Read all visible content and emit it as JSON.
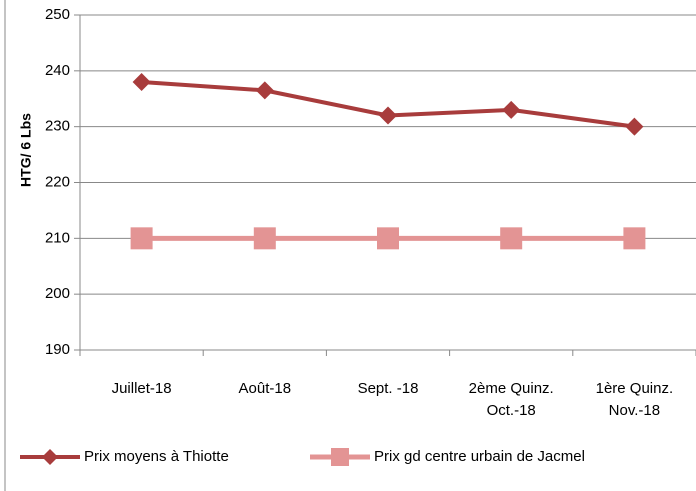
{
  "chart_data": {
    "type": "line",
    "y_label": "HTG/ 6 Lbs",
    "categories": [
      "Juillet-18",
      "Août-18",
      "Sept. -18",
      "2ème   Quinz.\nOct.-18",
      "1ère   Quinz.\nNov.-18"
    ],
    "series": [
      {
        "name": "Prix moyens à Thiotte",
        "color": "#a83c3c",
        "marker": "diamond",
        "values": [
          238,
          236.5,
          232,
          233,
          230
        ]
      },
      {
        "name": "Prix gd centre urbain de Jacmel",
        "color": "#e39494",
        "marker": "square",
        "values": [
          210,
          210,
          210,
          210,
          210
        ]
      }
    ],
    "ylim": [
      190,
      250
    ],
    "yticks": [
      190,
      200,
      210,
      220,
      230,
      240,
      250
    ],
    "grid": true
  }
}
